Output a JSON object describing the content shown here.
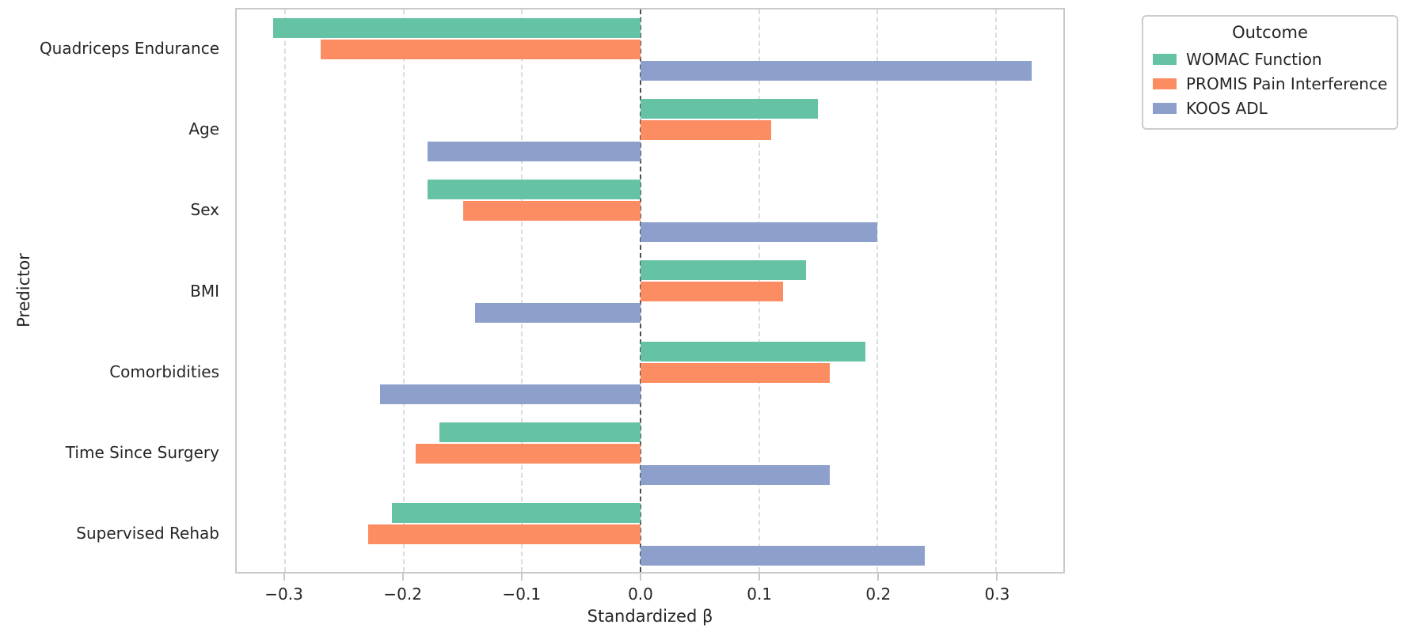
{
  "figure": {
    "background": "#ffffff",
    "xlabel": "Standardized β",
    "ylabel": "Predictor",
    "legend_title": "Outcome"
  },
  "colors": {
    "womac_green": "#66c2a5",
    "promis_orange": "#fc8d62",
    "koos_blue": "#8da0cb",
    "gridline": "#dcdcdc",
    "zero_line": "#4d4d4d",
    "spine": "#c9c9c9",
    "text": "#262626"
  },
  "chart_data": {
    "type": "bar",
    "orientation": "horizontal",
    "title": "",
    "xlabel": "Standardized β",
    "ylabel": "Predictor",
    "legend_title": "Outcome",
    "legend_position": "upper-right-outside",
    "grid": "vertical dashed gridlines at each x tick",
    "zero_reference_line": true,
    "xlim": [
      -0.341,
      0.357
    ],
    "x_ticks": [
      -0.3,
      -0.2,
      -0.1,
      0.0,
      0.1,
      0.2,
      0.3
    ],
    "x_tick_labels": [
      "−0.3",
      "−0.2",
      "−0.1",
      "0.0",
      "0.1",
      "0.2",
      "0.3"
    ],
    "categories": [
      "Quadriceps Endurance",
      "Age",
      "Sex",
      "BMI",
      "Comorbidities",
      "Time Since Surgery",
      "Supervised Rehab"
    ],
    "series": [
      {
        "name": "WOMAC Function",
        "color": "#66c2a5",
        "values": [
          -0.31,
          0.15,
          -0.18,
          0.14,
          0.19,
          -0.17,
          -0.21
        ]
      },
      {
        "name": "PROMIS Pain Interference",
        "color": "#fc8d62",
        "values": [
          -0.27,
          0.11,
          -0.15,
          0.12,
          0.16,
          -0.19,
          -0.23
        ]
      },
      {
        "name": "KOOS ADL",
        "color": "#8da0cb",
        "values": [
          0.33,
          -0.18,
          0.2,
          -0.14,
          -0.22,
          0.16,
          0.24
        ]
      }
    ]
  }
}
